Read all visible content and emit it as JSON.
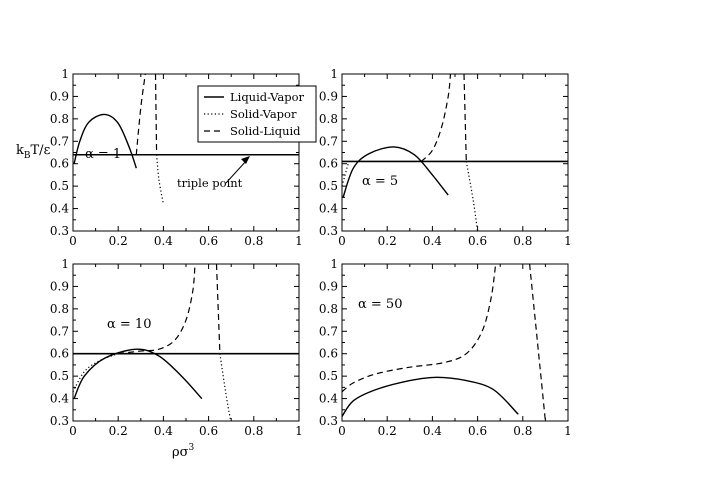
{
  "figure": {
    "ylabel": "k",
    "ylabel_sub": "B",
    "ylabel_rest": "T/ε",
    "xlabel": "ρσ",
    "xlabel_sup": "3"
  },
  "legend": {
    "items": [
      {
        "label": "Liquid-Vapor",
        "style": "solid"
      },
      {
        "label": "Solid-Vapor",
        "style": "dotted"
      },
      {
        "label": "Solid-Liquid",
        "style": "dashed"
      }
    ]
  },
  "annotation": {
    "text": "triple point"
  },
  "chart_data": [
    {
      "type": "line",
      "panel_label": "α = 1",
      "xlim": [
        0,
        1
      ],
      "ylim": [
        0.3,
        1
      ],
      "x_ticks": [
        "0",
        "0.2",
        "0.4",
        "0.6",
        "0.8",
        "1"
      ],
      "y_ticks": [
        "0.3",
        "0.4",
        "0.5",
        "0.6",
        "0.7",
        "0.8",
        "0.9",
        "1"
      ],
      "triple_point": 0.64,
      "series": [
        {
          "name": "Liquid-Vapor",
          "style": "solid",
          "points": [
            [
              0.005,
              0.6
            ],
            [
              0.03,
              0.7
            ],
            [
              0.07,
              0.785
            ],
            [
              0.14,
              0.82
            ],
            [
              0.2,
              0.78
            ],
            [
              0.25,
              0.67
            ],
            [
              0.28,
              0.58
            ]
          ]
        },
        {
          "name": "Solid-Vapor",
          "style": "dotted",
          "points": [
            [
              0.37,
              0.64
            ],
            [
              0.38,
              0.53
            ],
            [
              0.4,
              0.42
            ]
          ]
        },
        {
          "name": "Solid-Liquid",
          "style": "dashed",
          "points": [
            [
              0.28,
              0.64
            ],
            [
              0.3,
              0.85
            ],
            [
              0.32,
              1.0
            ]
          ]
        },
        {
          "name": "Solid-Liquid",
          "style": "dashed",
          "points": [
            [
              0.365,
              1.0
            ],
            [
              0.37,
              0.64
            ]
          ]
        }
      ]
    },
    {
      "type": "line",
      "panel_label": "α = 5",
      "xlim": [
        0,
        1
      ],
      "ylim": [
        0.3,
        1
      ],
      "x_ticks": [
        "0",
        "0.2",
        "0.4",
        "0.6",
        "0.8",
        "1"
      ],
      "y_ticks": [
        "0.3",
        "0.4",
        "0.5",
        "0.6",
        "0.7",
        "0.8",
        "0.9",
        "1"
      ],
      "triple_point": 0.61,
      "series": [
        {
          "name": "Liquid-Vapor",
          "style": "solid",
          "points": [
            [
              0.005,
              0.45
            ],
            [
              0.05,
              0.58
            ],
            [
              0.12,
              0.645
            ],
            [
              0.23,
              0.675
            ],
            [
              0.32,
              0.64
            ],
            [
              0.4,
              0.55
            ],
            [
              0.47,
              0.46
            ]
          ]
        },
        {
          "name": "Solid-Vapor",
          "style": "dotted",
          "points": [
            [
              0.0,
              0.5
            ],
            [
              0.03,
              0.61
            ]
          ]
        },
        {
          "name": "Solid-Vapor",
          "style": "dotted",
          "points": [
            [
              0.55,
              0.61
            ],
            [
              0.58,
              0.44
            ],
            [
              0.6,
              0.3
            ]
          ]
        },
        {
          "name": "Solid-Liquid",
          "style": "dashed",
          "points": [
            [
              0.35,
              0.61
            ],
            [
              0.4,
              0.66
            ],
            [
              0.44,
              0.76
            ],
            [
              0.47,
              0.9
            ],
            [
              0.48,
              1.0
            ]
          ]
        },
        {
          "name": "Solid-Liquid",
          "style": "dashed",
          "points": [
            [
              0.54,
              1.0
            ],
            [
              0.55,
              0.61
            ]
          ]
        }
      ]
    },
    {
      "type": "line",
      "panel_label": "α = 10",
      "xlim": [
        0,
        1
      ],
      "ylim": [
        0.3,
        1
      ],
      "x_ticks": [
        "0",
        "0.2",
        "0.4",
        "0.6",
        "0.8",
        "1"
      ],
      "y_ticks": [
        "0.3",
        "0.4",
        "0.5",
        "0.6",
        "0.7",
        "0.8",
        "0.9",
        "1"
      ],
      "triple_point": 0.6,
      "series": [
        {
          "name": "Liquid-Vapor",
          "style": "solid",
          "points": [
            [
              0.005,
              0.4
            ],
            [
              0.05,
              0.5
            ],
            [
              0.14,
              0.58
            ],
            [
              0.28,
              0.62
            ],
            [
              0.38,
              0.59
            ],
            [
              0.48,
              0.5
            ],
            [
              0.57,
              0.4
            ]
          ]
        },
        {
          "name": "Solid-Vapor",
          "style": "dotted",
          "points": [
            [
              0.0,
              0.43
            ],
            [
              0.05,
              0.52
            ],
            [
              0.12,
              0.57
            ],
            [
              0.2,
              0.6
            ]
          ]
        },
        {
          "name": "Solid-Vapor",
          "style": "dotted",
          "points": [
            [
              0.65,
              0.6
            ],
            [
              0.68,
              0.4
            ],
            [
              0.7,
              0.29
            ]
          ]
        },
        {
          "name": "Solid-Liquid",
          "style": "dashed",
          "points": [
            [
              0.2,
              0.6
            ],
            [
              0.3,
              0.612
            ],
            [
              0.38,
              0.62
            ],
            [
              0.45,
              0.66
            ],
            [
              0.5,
              0.75
            ],
            [
              0.53,
              0.88
            ],
            [
              0.54,
              1.0
            ]
          ]
        },
        {
          "name": "Solid-Liquid",
          "style": "dashed",
          "points": [
            [
              0.635,
              1.0
            ],
            [
              0.65,
              0.6
            ]
          ]
        }
      ]
    },
    {
      "type": "line",
      "panel_label": "α = 50",
      "xlim": [
        0,
        1
      ],
      "ylim": [
        0.3,
        1
      ],
      "x_ticks": [
        "0",
        "0.2",
        "0.4",
        "0.6",
        "0.8",
        "1"
      ],
      "y_ticks": [
        "0.3",
        "0.4",
        "0.5",
        "0.6",
        "0.7",
        "0.8",
        "0.9",
        "1"
      ],
      "series": [
        {
          "name": "Liquid-Vapor",
          "style": "solid",
          "points": [
            [
              0.0,
              0.32
            ],
            [
              0.05,
              0.39
            ],
            [
              0.15,
              0.44
            ],
            [
              0.3,
              0.48
            ],
            [
              0.42,
              0.495
            ],
            [
              0.55,
              0.48
            ],
            [
              0.67,
              0.44
            ],
            [
              0.78,
              0.33
            ]
          ]
        },
        {
          "name": "Solid-Liquid",
          "style": "dashed",
          "points": [
            [
              0.0,
              0.43
            ],
            [
              0.05,
              0.47
            ],
            [
              0.15,
              0.51
            ],
            [
              0.3,
              0.54
            ],
            [
              0.45,
              0.56
            ],
            [
              0.55,
              0.6
            ],
            [
              0.62,
              0.7
            ],
            [
              0.66,
              0.85
            ],
            [
              0.68,
              1.0
            ]
          ]
        },
        {
          "name": "Solid-Liquid",
          "style": "dashed",
          "points": [
            [
              0.83,
              1.0
            ],
            [
              0.86,
              0.7
            ],
            [
              0.88,
              0.5
            ],
            [
              0.9,
              0.3
            ]
          ]
        }
      ]
    }
  ]
}
